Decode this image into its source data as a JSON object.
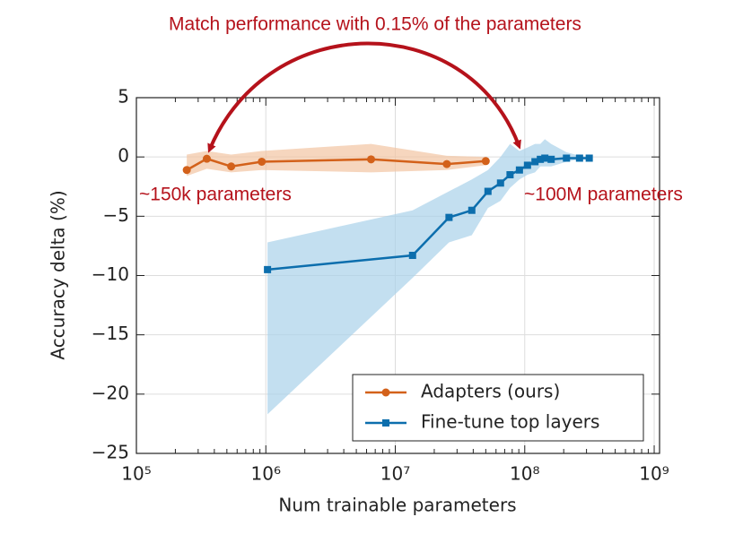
{
  "chart_data": {
    "type": "line",
    "annotations": [
      "Match performance with 0.15% of the parameters",
      "~150k parameters",
      "~100M parameters"
    ],
    "xlabel": "Num trainable parameters",
    "ylabel": "Accuracy delta (%)",
    "xscale": "log",
    "xlim": [
      100000,
      1100000000
    ],
    "xticks": [
      {
        "value": 100000,
        "label": "10⁵"
      },
      {
        "value": 1000000,
        "label": "10⁶"
      },
      {
        "value": 10000000,
        "label": "10⁷"
      },
      {
        "value": 100000000,
        "label": "10⁸"
      },
      {
        "value": 1000000000,
        "label": "10⁹"
      }
    ],
    "ylim": [
      -25,
      5
    ],
    "yticks": [
      {
        "value": -25,
        "label": "−25"
      },
      {
        "value": -20,
        "label": "−20"
      },
      {
        "value": -15,
        "label": "−15"
      },
      {
        "value": -10,
        "label": "−10"
      },
      {
        "value": -5,
        "label": "−5"
      },
      0,
      5
    ],
    "grid": true,
    "legend": "lower right",
    "series": [
      {
        "name": "Adapters (ours)",
        "color": "#d3611a",
        "band_color": "#f2c4a2",
        "marker": "circle",
        "x": [
          245000,
          350000,
          540000,
          930000,
          6500000,
          25000000,
          50000000
        ],
        "values": [
          -1.1,
          -0.15,
          -0.8,
          -0.4,
          -0.2,
          -0.6,
          -0.35
        ],
        "upper": [
          0.2,
          0.5,
          0.2,
          0.5,
          1.1,
          0.1,
          0
        ],
        "lower": [
          -1.6,
          -1.0,
          -1.3,
          -1.1,
          -1.3,
          -1.1,
          -0.7
        ]
      },
      {
        "name": "Fine-tune top layers",
        "color": "#0c6ead",
        "band_color": "#a9d2ea",
        "marker": "square",
        "x": [
          1030000,
          13600000,
          26000000,
          39000000,
          52000000,
          65000000,
          77000000,
          91000000,
          105000000,
          120000000,
          132000000,
          143000000,
          160000000,
          210000000,
          265000000,
          315000000
        ],
        "values": [
          -9.5,
          -8.3,
          -5.1,
          -4.5,
          -2.9,
          -2.2,
          -1.5,
          -1.1,
          -0.7,
          -0.4,
          -0.2,
          -0.1,
          -0.2,
          -0.1,
          -0.1,
          -0.1
        ],
        "upper": [
          -7.2,
          -4.5,
          -2.9,
          -1.9,
          -1.1,
          0,
          1.1,
          0.5,
          0.8,
          1.1,
          1.1,
          1.5,
          1.1,
          0.4,
          0.1,
          0
        ],
        "lower": [
          -21.7,
          -10.2,
          -7.2,
          -6.6,
          -4.3,
          -3.7,
          -2.6,
          -1.9,
          -1.5,
          -1.3,
          -0.8,
          -0.8,
          -0.8,
          -0.4,
          -0.2,
          -0.2
        ]
      }
    ]
  }
}
